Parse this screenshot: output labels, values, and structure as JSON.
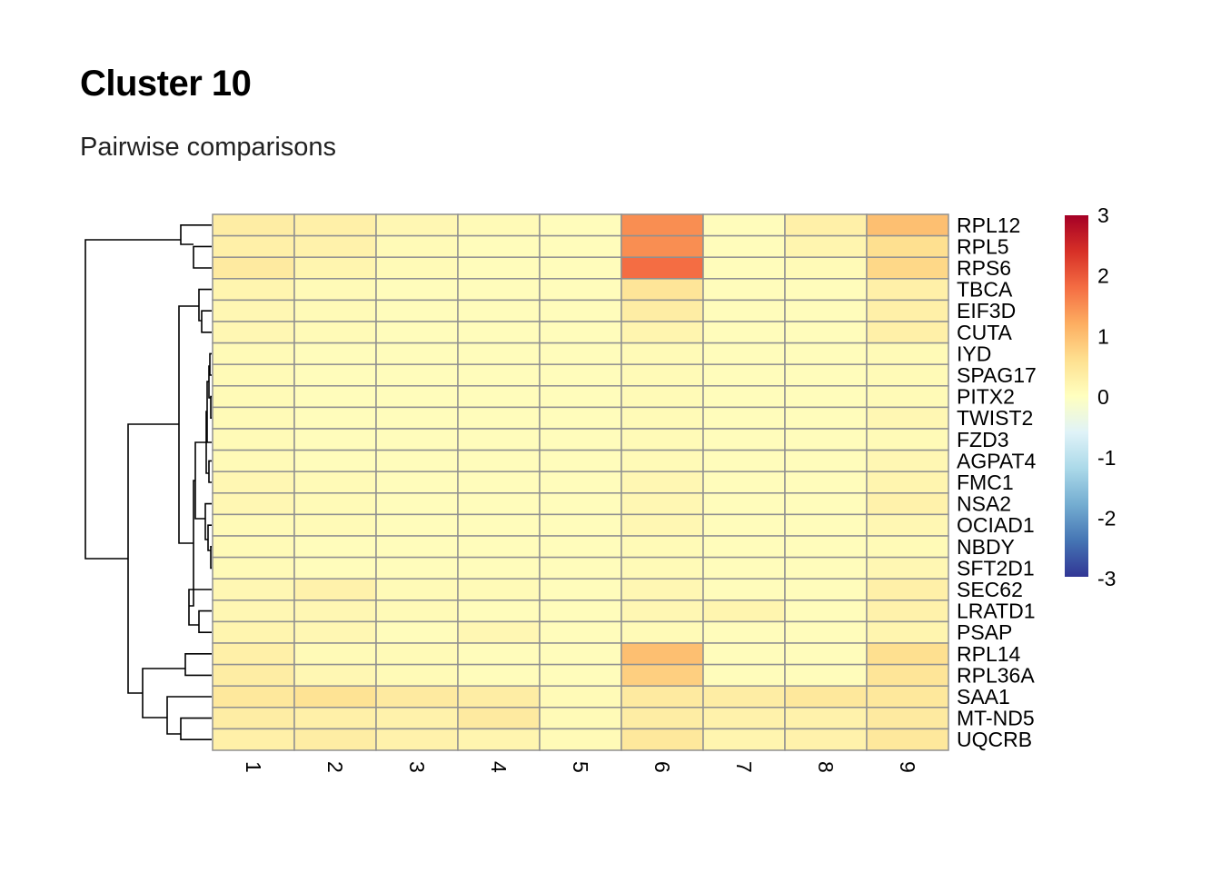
{
  "header": {
    "title": "Cluster 10",
    "subtitle": "Pairwise comparisons"
  },
  "chart_data": {
    "type": "heatmap",
    "title": "Cluster 10",
    "subtitle": "Pairwise comparisons",
    "columns": [
      "1",
      "2",
      "3",
      "4",
      "5",
      "6",
      "7",
      "8",
      "9"
    ],
    "rows": [
      "RPL12",
      "RPL5",
      "RPS6",
      "TBCA",
      "EIF3D",
      "CUTA",
      "IYD",
      "SPAG17",
      "PITX2",
      "TWIST2",
      "FZD3",
      "AGPAT4",
      "FMC1",
      "NSA2",
      "OCIAD1",
      "NBDY",
      "SFT2D1",
      "SEC62",
      "LRATD1",
      "PSAP",
      "RPL14",
      "RPL36A",
      "SAA1",
      "MT-ND5",
      "UQCRB"
    ],
    "values": [
      [
        0.35,
        0.3,
        0.15,
        0.1,
        0.05,
        1.5,
        0.05,
        0.3,
        1.0
      ],
      [
        0.3,
        0.25,
        0.1,
        0.05,
        0.05,
        1.5,
        0.05,
        0.2,
        0.6
      ],
      [
        0.4,
        0.2,
        0.1,
        0.05,
        0.05,
        1.8,
        0.05,
        0.1,
        0.7
      ],
      [
        0.2,
        0.1,
        0.05,
        0.05,
        0.05,
        0.5,
        0.05,
        0.05,
        0.3
      ],
      [
        0.15,
        0.1,
        0.05,
        0.05,
        0.05,
        0.35,
        0.05,
        0.05,
        0.3
      ],
      [
        0.15,
        0.1,
        0.05,
        0.05,
        0.05,
        0.2,
        0.05,
        0.05,
        0.3
      ],
      [
        0.1,
        0.05,
        0.05,
        0.05,
        0.05,
        0.1,
        0.05,
        0.05,
        0.1
      ],
      [
        0.1,
        0.05,
        0.05,
        0.05,
        0.05,
        0.1,
        0.05,
        0.05,
        0.1
      ],
      [
        0.1,
        0.05,
        0.05,
        0.05,
        0.05,
        0.1,
        0.05,
        0.05,
        0.1
      ],
      [
        0.1,
        0.05,
        0.05,
        0.05,
        0.05,
        0.1,
        0.05,
        0.05,
        0.15
      ],
      [
        0.1,
        0.05,
        0.05,
        0.05,
        0.05,
        0.1,
        0.05,
        0.05,
        0.1
      ],
      [
        0.1,
        0.05,
        0.05,
        0.05,
        0.05,
        0.1,
        0.05,
        0.05,
        0.15
      ],
      [
        0.15,
        0.1,
        0.05,
        0.05,
        0.05,
        0.15,
        0.05,
        0.05,
        0.2
      ],
      [
        0.15,
        0.1,
        0.05,
        0.05,
        0.05,
        0.15,
        0.05,
        0.05,
        0.25
      ],
      [
        0.1,
        0.1,
        0.05,
        0.05,
        0.05,
        0.15,
        0.05,
        0.05,
        0.15
      ],
      [
        0.1,
        0.05,
        0.05,
        0.05,
        0.05,
        0.1,
        0.05,
        0.05,
        0.1
      ],
      [
        0.1,
        0.05,
        0.05,
        0.05,
        0.05,
        0.1,
        0.05,
        0.05,
        0.15
      ],
      [
        0.15,
        0.25,
        0.1,
        0.1,
        0.05,
        0.15,
        0.05,
        0.05,
        0.3
      ],
      [
        0.15,
        0.15,
        0.1,
        0.05,
        0.05,
        0.15,
        0.2,
        0.05,
        0.25
      ],
      [
        0.2,
        0.15,
        0.05,
        0.15,
        0.05,
        0.1,
        0.05,
        0.05,
        0.2
      ],
      [
        0.3,
        0.1,
        0.1,
        0.05,
        0.05,
        1.0,
        0.05,
        0.05,
        0.6
      ],
      [
        0.35,
        0.15,
        0.1,
        0.05,
        0.05,
        0.8,
        0.05,
        0.05,
        0.5
      ],
      [
        0.45,
        0.55,
        0.4,
        0.35,
        0.1,
        0.4,
        0.35,
        0.45,
        0.45
      ],
      [
        0.35,
        0.3,
        0.25,
        0.4,
        0.1,
        0.35,
        0.25,
        0.25,
        0.4
      ],
      [
        0.3,
        0.35,
        0.25,
        0.2,
        0.1,
        0.45,
        0.2,
        0.25,
        0.45
      ]
    ],
    "color_scale": {
      "min": -3,
      "max": 3,
      "ticks": [
        "3",
        "2",
        "1",
        "0",
        "-1",
        "-2",
        "-3"
      ],
      "colors": [
        "#313695",
        "#4575B4",
        "#74ADD1",
        "#ABD9E9",
        "#E0F3F8",
        "#FFFFBF",
        "#FEE090",
        "#FDAE61",
        "#F46D43",
        "#D73027",
        "#A50026"
      ]
    },
    "cell_border_color": "#909090",
    "row_dendrogram": true,
    "col_dendrogram": false
  }
}
